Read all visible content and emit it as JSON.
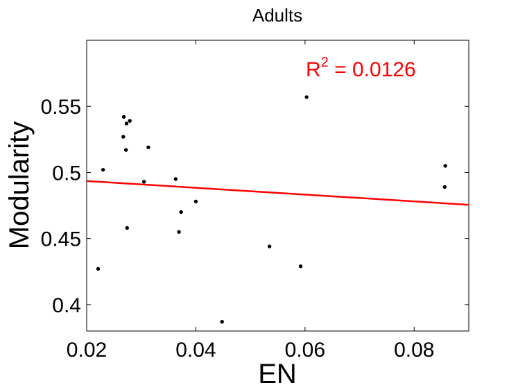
{
  "chart_data": {
    "type": "scatter",
    "title": "Adults",
    "xlabel": "EN",
    "ylabel": "Modularity",
    "xlim": [
      0.02,
      0.09
    ],
    "ylim": [
      0.38,
      0.6
    ],
    "xticks": [
      0.02,
      0.04,
      0.06,
      0.08
    ],
    "xtick_labels": [
      "0.02",
      "0.04",
      "0.06",
      "0.08"
    ],
    "yticks": [
      0.4,
      0.45,
      0.5,
      0.55
    ],
    "ytick_labels": [
      "0.4",
      "0.45",
      "0.5",
      "0.55"
    ],
    "grid": false,
    "legend": "none",
    "colors": {
      "points": "#000000",
      "fit_line": "#ff0000",
      "annotation": "#ff0000"
    },
    "points": [
      {
        "x": 0.0221,
        "y": 0.427
      },
      {
        "x": 0.023,
        "y": 0.502
      },
      {
        "x": 0.0267,
        "y": 0.527
      },
      {
        "x": 0.0268,
        "y": 0.542
      },
      {
        "x": 0.0272,
        "y": 0.517
      },
      {
        "x": 0.0273,
        "y": 0.537
      },
      {
        "x": 0.0274,
        "y": 0.458
      },
      {
        "x": 0.0279,
        "y": 0.539
      },
      {
        "x": 0.0305,
        "y": 0.493
      },
      {
        "x": 0.0313,
        "y": 0.519
      },
      {
        "x": 0.0363,
        "y": 0.495
      },
      {
        "x": 0.0369,
        "y": 0.455
      },
      {
        "x": 0.0373,
        "y": 0.47
      },
      {
        "x": 0.04,
        "y": 0.478
      },
      {
        "x": 0.0448,
        "y": 0.387
      },
      {
        "x": 0.0535,
        "y": 0.444
      },
      {
        "x": 0.0592,
        "y": 0.429
      },
      {
        "x": 0.0603,
        "y": 0.557
      },
      {
        "x": 0.0856,
        "y": 0.489
      },
      {
        "x": 0.0857,
        "y": 0.505
      }
    ],
    "fit_line": {
      "x": [
        0.02,
        0.09
      ],
      "y": [
        0.4935,
        0.4755
      ]
    },
    "annotation": {
      "base": "R",
      "superscript": "2",
      "value": " = 0.0126"
    }
  }
}
